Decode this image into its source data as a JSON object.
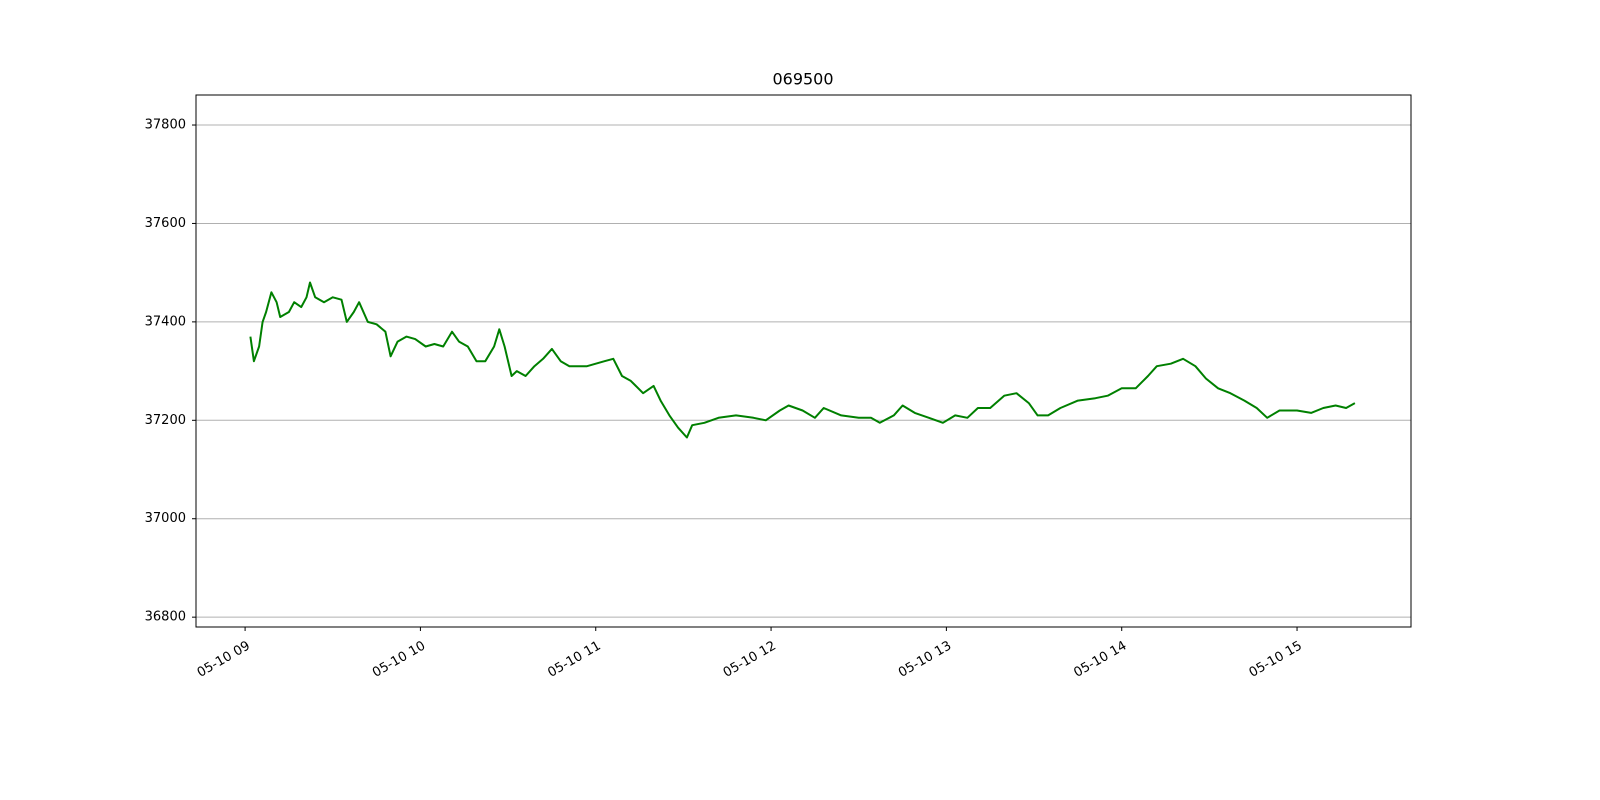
{
  "chart_data": {
    "type": "line",
    "title": "069500",
    "x": [
      9.03,
      9.05,
      9.08,
      9.1,
      9.12,
      9.15,
      9.18,
      9.2,
      9.25,
      9.28,
      9.32,
      9.35,
      9.37,
      9.4,
      9.45,
      9.5,
      9.55,
      9.58,
      9.62,
      9.65,
      9.7,
      9.75,
      9.8,
      9.83,
      9.87,
      9.92,
      9.97,
      10.03,
      10.08,
      10.13,
      10.18,
      10.22,
      10.27,
      10.32,
      10.37,
      10.42,
      10.45,
      10.48,
      10.52,
      10.55,
      10.6,
      10.65,
      10.7,
      10.75,
      10.8,
      10.85,
      10.95,
      11.05,
      11.1,
      11.15,
      11.2,
      11.27,
      11.33,
      11.37,
      11.42,
      11.47,
      11.52,
      11.55,
      11.62,
      11.7,
      11.8,
      11.9,
      11.97,
      12.05,
      12.1,
      12.18,
      12.25,
      12.3,
      12.4,
      12.5,
      12.57,
      12.62,
      12.7,
      12.75,
      12.82,
      12.9,
      12.98,
      13.05,
      13.12,
      13.18,
      13.25,
      13.33,
      13.4,
      13.47,
      13.52,
      13.58,
      13.65,
      13.75,
      13.85,
      13.92,
      14.0,
      14.08,
      14.15,
      14.2,
      14.28,
      14.35,
      14.42,
      14.48,
      14.55,
      14.62,
      14.7,
      14.77,
      14.83,
      14.9,
      15.0,
      15.08,
      15.15,
      15.22,
      15.28,
      15.33
    ],
    "values": [
      37370,
      37320,
      37350,
      37400,
      37420,
      37460,
      37440,
      37410,
      37420,
      37440,
      37430,
      37450,
      37480,
      37450,
      37440,
      37450,
      37445,
      37400,
      37420,
      37440,
      37400,
      37395,
      37380,
      37330,
      37360,
      37370,
      37365,
      37350,
      37355,
      37350,
      37380,
      37360,
      37350,
      37320,
      37320,
      37350,
      37385,
      37350,
      37290,
      37300,
      37290,
      37310,
      37325,
      37345,
      37320,
      37310,
      37310,
      37320,
      37325,
      37290,
      37280,
      37255,
      37270,
      37240,
      37210,
      37185,
      37165,
      37190,
      37195,
      37205,
      37210,
      37205,
      37200,
      37220,
      37230,
      37220,
      37205,
      37225,
      37210,
      37205,
      37205,
      37195,
      37210,
      37230,
      37215,
      37205,
      37195,
      37210,
      37205,
      37225,
      37225,
      37250,
      37255,
      37235,
      37210,
      37210,
      37225,
      37240,
      37245,
      37250,
      37265,
      37265,
      37290,
      37310,
      37315,
      37325,
      37310,
      37285,
      37265,
      37255,
      37240,
      37225,
      37205,
      37220,
      37220,
      37215,
      37225,
      37230,
      37225,
      37235
    ],
    "color": "#008000",
    "xlim": [
      8.72,
      15.65
    ],
    "xticks": [
      {
        "value": 9,
        "label": "05-10 09"
      },
      {
        "value": 10,
        "label": "05-10 10"
      },
      {
        "value": 11,
        "label": "05-10 11"
      },
      {
        "value": 12,
        "label": "05-10 12"
      },
      {
        "value": 13,
        "label": "05-10 13"
      },
      {
        "value": 14,
        "label": "05-10 14"
      },
      {
        "value": 15,
        "label": "05-10 15"
      }
    ],
    "ylim": [
      36780,
      37861
    ],
    "yticks": [
      36800,
      37000,
      37200,
      37400,
      37600,
      37800
    ],
    "grid": true
  }
}
